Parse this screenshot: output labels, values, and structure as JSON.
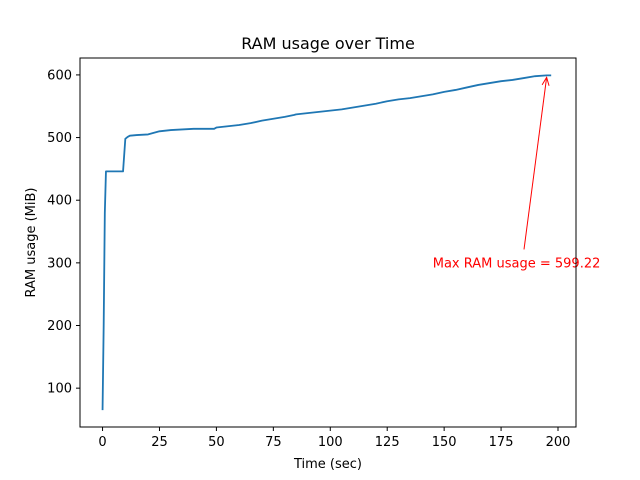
{
  "chart_data": {
    "type": "line",
    "title": "RAM usage over Time",
    "xlabel": "Time (sec)",
    "ylabel": "RAM usage (MiB)",
    "xlim": [
      -9.9,
      207.9
    ],
    "ylim": [
      38,
      627
    ],
    "xticks": [
      0,
      25,
      50,
      75,
      100,
      125,
      150,
      175,
      200
    ],
    "yticks": [
      100,
      200,
      300,
      400,
      500,
      600
    ],
    "grid": false,
    "series": [
      {
        "color": "#1f77b4",
        "points": [
          [
            0,
            65
          ],
          [
            0.5,
            200
          ],
          [
            1,
            380
          ],
          [
            1.5,
            446
          ],
          [
            3,
            446
          ],
          [
            5,
            446
          ],
          [
            7,
            446
          ],
          [
            9,
            446
          ],
          [
            10,
            498
          ],
          [
            11,
            501
          ],
          [
            12,
            503
          ],
          [
            15,
            504
          ],
          [
            20,
            505
          ],
          [
            25,
            510
          ],
          [
            30,
            512
          ],
          [
            35,
            513
          ],
          [
            40,
            514
          ],
          [
            45,
            514
          ],
          [
            49,
            514
          ],
          [
            50,
            516
          ],
          [
            55,
            518
          ],
          [
            60,
            520
          ],
          [
            65,
            523
          ],
          [
            70,
            527
          ],
          [
            75,
            530
          ],
          [
            80,
            533
          ],
          [
            84,
            536
          ],
          [
            85,
            537
          ],
          [
            90,
            539
          ],
          [
            95,
            541
          ],
          [
            100,
            543
          ],
          [
            105,
            545
          ],
          [
            110,
            548
          ],
          [
            115,
            551
          ],
          [
            120,
            554
          ],
          [
            125,
            558
          ],
          [
            130,
            561
          ],
          [
            135,
            563
          ],
          [
            140,
            566
          ],
          [
            145,
            569
          ],
          [
            150,
            573
          ],
          [
            155,
            576
          ],
          [
            160,
            580
          ],
          [
            165,
            584
          ],
          [
            170,
            587
          ],
          [
            175,
            590
          ],
          [
            180,
            592
          ],
          [
            185,
            595
          ],
          [
            190,
            598
          ],
          [
            195,
            599.22
          ],
          [
            197,
            599.22
          ]
        ]
      }
    ],
    "annotation": {
      "text": "Max RAM usage = 599.22",
      "color": "#ff0000",
      "point": [
        195,
        599.22
      ],
      "text_anchor_data": [
        145,
        299
      ]
    }
  }
}
